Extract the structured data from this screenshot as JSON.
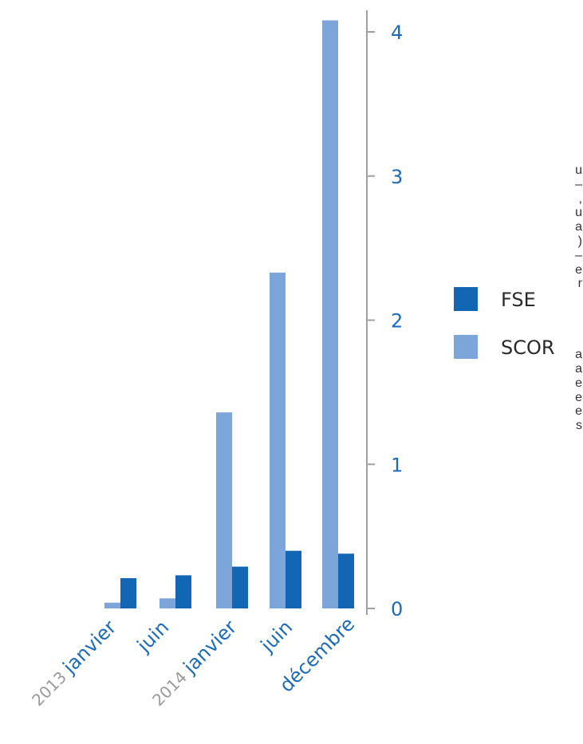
{
  "colors": {
    "fse": "#1266b4",
    "scor": "#7ca5da",
    "axis": "#a0a0a0",
    "tick_label": "#1b6bb8",
    "year_label": "#9a9a9a",
    "legend_text": "#2a2a2a",
    "text_fragment": "#333333"
  },
  "text_fragment": {
    "lines_top": [
      "u",
      "–",
      ",",
      "u",
      "a",
      ")",
      "–",
      "e",
      "r"
    ],
    "lines_bottom": [
      "a",
      "a",
      "e",
      "e",
      "e",
      "s"
    ]
  },
  "chart_data": {
    "type": "bar",
    "title": "",
    "xlabel": "",
    "ylabel": "",
    "categories": [
      "janvier",
      "juin",
      "janvier",
      "juin",
      "décembre"
    ],
    "year_labels": [
      "2013",
      "",
      "2014",
      "",
      ""
    ],
    "series": [
      {
        "name": "FSE",
        "color_key": "fse",
        "values": [
          0.21,
          0.23,
          0.29,
          0.4,
          0.38
        ]
      },
      {
        "name": "SCOR",
        "color_key": "scor",
        "values": [
          0.04,
          0.07,
          1.36,
          2.33,
          4.08
        ]
      }
    ],
    "ylim": [
      0,
      4
    ],
    "yticks": [
      0,
      1,
      2,
      3,
      4
    ],
    "ytick_labels": [
      "0",
      "1",
      "2",
      "3",
      "4"
    ],
    "y_axis_side": "right",
    "grid": false,
    "legend_position": "right"
  }
}
